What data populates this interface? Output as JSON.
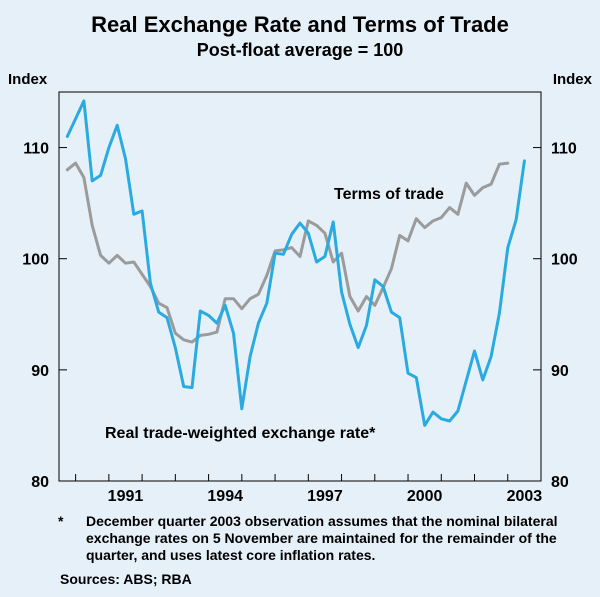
{
  "chart_data": {
    "type": "line",
    "title": "Real Exchange Rate and Terms of Trade",
    "subtitle": "Post-float average = 100",
    "ylabel_left": "Index",
    "ylabel_right": "Index",
    "ylim": [
      80,
      115
    ],
    "yticks": [
      80,
      90,
      100,
      110
    ],
    "xlim": [
      1989.5,
      2004.0
    ],
    "xticks": [
      1991,
      1994,
      1997,
      2000,
      2003
    ],
    "xtick_labels": [
      "1991",
      "1994",
      "1997",
      "2000",
      "2003"
    ],
    "series": [
      {
        "name": "Real trade-weighted exchange rate*",
        "color": "#29abe2",
        "x": [
          1989.75,
          1990.0,
          1990.25,
          1990.5,
          1990.75,
          1991.0,
          1991.25,
          1991.5,
          1991.75,
          1992.0,
          1992.25,
          1992.5,
          1992.75,
          1993.0,
          1993.25,
          1993.5,
          1993.75,
          1994.0,
          1994.25,
          1994.5,
          1994.75,
          1995.0,
          1995.25,
          1995.5,
          1995.75,
          1996.0,
          1996.25,
          1996.5,
          1996.75,
          1997.0,
          1997.25,
          1997.5,
          1997.75,
          1998.0,
          1998.25,
          1998.5,
          1998.75,
          1999.0,
          1999.25,
          1999.5,
          1999.75,
          2000.0,
          2000.25,
          2000.5,
          2000.75,
          2001.0,
          2001.25,
          2001.5,
          2001.75,
          2002.0,
          2002.25,
          2002.5,
          2002.75,
          2003.0,
          2003.25,
          2003.5,
          2003.75
        ],
        "values": [
          111.0,
          112.6,
          114.2,
          107.0,
          107.5,
          110.0,
          112.0,
          109.0,
          104.0,
          104.3,
          97.8,
          95.2,
          94.7,
          92.0,
          88.5,
          88.4,
          95.3,
          94.9,
          94.2,
          95.8,
          93.3,
          86.5,
          91.2,
          94.2,
          96.0,
          100.5,
          100.4,
          102.2,
          103.2,
          102.3,
          99.7,
          100.2,
          103.3,
          97.0,
          94.1,
          92.0,
          94.0,
          98.1,
          97.5,
          95.2,
          94.7,
          89.7,
          89.3,
          85.0,
          86.2,
          85.6,
          85.4,
          86.3,
          89.0,
          91.7,
          89.1,
          91.2,
          95.1,
          101.0,
          103.5,
          108.8,
          null
        ]
      },
      {
        "name": "Terms of trade",
        "color": "#9b9b9b",
        "x": [
          1989.75,
          1990.0,
          1990.25,
          1990.5,
          1990.75,
          1991.0,
          1991.25,
          1991.5,
          1991.75,
          1992.0,
          1992.25,
          1992.5,
          1992.75,
          1993.0,
          1993.25,
          1993.5,
          1993.75,
          1994.0,
          1994.25,
          1994.5,
          1994.75,
          1995.0,
          1995.25,
          1995.5,
          1995.75,
          1996.0,
          1996.25,
          1996.5,
          1996.75,
          1997.0,
          1997.25,
          1997.5,
          1997.75,
          1998.0,
          1998.25,
          1998.5,
          1998.75,
          1999.0,
          1999.25,
          1999.5,
          1999.75,
          2000.0,
          2000.25,
          2000.5,
          2000.75,
          2001.0,
          2001.25,
          2001.5,
          2001.75,
          2002.0,
          2002.25,
          2002.5,
          2002.75,
          2003.0,
          2003.25
        ],
        "values": [
          108.0,
          108.6,
          107.3,
          103.0,
          100.3,
          99.6,
          100.3,
          99.6,
          99.7,
          98.6,
          97.5,
          96.0,
          95.6,
          93.3,
          92.7,
          92.5,
          93.1,
          93.2,
          93.4,
          96.4,
          96.4,
          95.5,
          96.4,
          96.8,
          98.5,
          100.7,
          100.8,
          101.0,
          100.2,
          103.4,
          103.0,
          102.3,
          99.7,
          100.5,
          96.6,
          95.3,
          96.6,
          95.8,
          97.4,
          99.1,
          102.1,
          101.6,
          103.6,
          102.8,
          103.4,
          103.7,
          104.6,
          104.0,
          106.8,
          105.7,
          106.4,
          106.7,
          108.5,
          108.6,
          null
        ]
      }
    ],
    "annotations": [
      {
        "text": "Terms of trade"
      },
      {
        "text": "Real trade-weighted exchange rate*"
      }
    ],
    "grid": false,
    "legend": "none"
  },
  "footnote": {
    "marker": "*",
    "text": "December quarter 2003 observation assumes that the nominal bilateral exchange rates on 5 November are maintained for the remainder of the quarter, and uses latest core inflation rates."
  },
  "sources": "Sources: ABS; RBA"
}
